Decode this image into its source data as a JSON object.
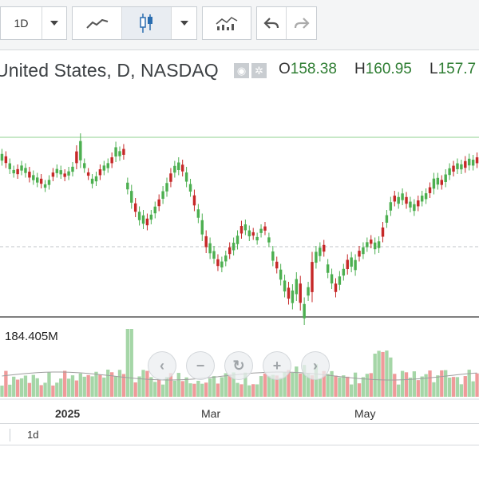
{
  "toolbar": {
    "interval": "1D",
    "chart_types": [
      "line-chart-icon",
      "candlestick-icon"
    ],
    "active_chart_type": "candlestick-icon",
    "indicators": "indicators-icon",
    "undo": "undo-icon",
    "redo": "redo-icon"
  },
  "header": {
    "title": "United States, D, NASDAQ",
    "open_label": "O",
    "open_value": "158.38",
    "high_label": "H",
    "high_value": "160.95",
    "low_label": "L",
    "low_value": "157.7"
  },
  "volume": {
    "label": "184.405M"
  },
  "xaxis": {
    "labels": [
      "2025",
      "Mar",
      "May"
    ]
  },
  "footer": {
    "interval": "1d"
  },
  "colors": {
    "up": "#4caf50",
    "down": "#c62828",
    "volume_up": "#a5d6a7",
    "volume_down": "#ef9a9a"
  },
  "chart_data": {
    "type": "candlestick",
    "grid": false,
    "candles": [
      [
        1,
        6.6,
        5.8
      ],
      [
        2,
        6.4,
        5.6
      ],
      [
        3,
        5.8,
        5.1
      ],
      [
        4,
        5.2,
        4.8
      ],
      [
        5,
        5.3,
        4.7
      ],
      [
        6,
        5.6,
        5.0
      ],
      [
        7,
        5.4,
        4.8
      ],
      [
        8,
        5.1,
        4.4
      ],
      [
        9,
        4.8,
        4.2
      ],
      [
        10,
        4.6,
        4.0
      ],
      [
        11,
        4.5,
        3.9
      ],
      [
        12,
        4.0,
        3.6
      ],
      [
        13,
        4.4,
        3.8
      ],
      [
        14,
        5.0,
        4.5
      ],
      [
        15,
        5.3,
        4.8
      ],
      [
        16,
        5.2,
        4.7
      ],
      [
        17,
        4.9,
        4.5
      ],
      [
        18,
        5.1,
        4.6
      ],
      [
        19,
        5.5,
        4.9
      ],
      [
        20,
        6.9,
        5.5
      ],
      [
        21,
        7.9,
        5.6
      ],
      [
        22,
        5.8,
        5.2
      ],
      [
        23,
        5.0,
        4.6
      ],
      [
        24,
        4.5,
        3.9
      ],
      [
        25,
        4.7,
        4.1
      ],
      [
        26,
        5.3,
        4.6
      ],
      [
        27,
        5.6,
        5.0
      ],
      [
        28,
        5.8,
        5.2
      ],
      [
        29,
        6.3,
        5.6
      ],
      [
        30,
        7.2,
        6.1
      ],
      [
        31,
        6.8,
        6.2
      ],
      [
        32,
        7.0,
        6.3
      ],
      [
        33,
        4.2,
        3.4
      ],
      [
        34,
        3.6,
        2.2
      ],
      [
        35,
        2.5,
        1.5
      ],
      [
        36,
        1.8,
        0.8
      ],
      [
        37,
        1.5,
        0.5
      ],
      [
        38,
        1.2,
        0.4
      ],
      [
        39,
        1.5,
        0.9
      ],
      [
        40,
        2.2,
        1.4
      ],
      [
        41,
        2.8,
        2.0
      ],
      [
        42,
        3.5,
        2.6
      ],
      [
        43,
        4.2,
        3.2
      ],
      [
        44,
        5.0,
        4.0
      ],
      [
        45,
        5.6,
        4.8
      ],
      [
        46,
        5.9,
        5.0
      ],
      [
        47,
        5.7,
        4.9
      ],
      [
        48,
        5.1,
        4.0
      ],
      [
        49,
        4.1,
        3.2
      ],
      [
        50,
        3.2,
        2.0
      ],
      [
        51,
        2.0,
        1.0
      ],
      [
        52,
        1.2,
        -0.5
      ],
      [
        53,
        -0.2,
        -1.5
      ],
      [
        54,
        -0.8,
        -2.0
      ],
      [
        55,
        -1.5,
        -2.4
      ],
      [
        56,
        -2.2,
        -3.0
      ],
      [
        57,
        -2.4,
        -3.1
      ],
      [
        58,
        -1.9,
        -2.6
      ],
      [
        59,
        -1.2,
        -2.0
      ],
      [
        60,
        -0.8,
        -1.7
      ],
      [
        61,
        -0.2,
        -1.2
      ],
      [
        62,
        0.6,
        -0.3
      ],
      [
        63,
        0.7,
        0.0
      ],
      [
        64,
        0.2,
        -0.5
      ],
      [
        65,
        0.0,
        -0.4
      ],
      [
        66,
        -0.4,
        -0.8
      ],
      [
        67,
        0.3,
        -0.2
      ],
      [
        68,
        0.5,
        0.0
      ],
      [
        69,
        -0.4,
        -1.0
      ],
      [
        70,
        -1.5,
        -2.6
      ],
      [
        71,
        -2.4,
        -3.2
      ],
      [
        72,
        -3.0,
        -4.2
      ],
      [
        73,
        -3.9,
        -5.2
      ],
      [
        74,
        -4.5,
        -5.8
      ],
      [
        75,
        -4.7,
        -6.2
      ],
      [
        76,
        -3.7,
        -5.5
      ],
      [
        77,
        -4.0,
        -6.3
      ],
      [
        78,
        -5.8,
        -7.5
      ],
      [
        79,
        -4.5,
        -5.5
      ],
      [
        80,
        -2.0,
        -5.6
      ],
      [
        81,
        -1.5,
        -2.8
      ],
      [
        82,
        -1.2,
        -2.2
      ],
      [
        83,
        -1.0,
        -1.8
      ],
      [
        84,
        -2.6,
        -3.6
      ],
      [
        85,
        -3.4,
        -4.5
      ],
      [
        86,
        -4.2,
        -5.2
      ],
      [
        87,
        -3.6,
        -4.6
      ],
      [
        88,
        -3.0,
        -3.8
      ],
      [
        89,
        -2.2,
        -3.3
      ],
      [
        90,
        -2.0,
        -3.1
      ],
      [
        91,
        -2.2,
        -3.4
      ],
      [
        92,
        -1.5,
        -2.2
      ],
      [
        93,
        -1.2,
        -2.0
      ],
      [
        94,
        -0.8,
        -1.4
      ],
      [
        95,
        -0.6,
        -1.1
      ],
      [
        96,
        -0.8,
        -1.6
      ],
      [
        97,
        -0.7,
        -1.5
      ],
      [
        98,
        0.5,
        -0.6
      ],
      [
        99,
        1.5,
        0.6
      ],
      [
        100,
        2.6,
        1.6
      ],
      [
        101,
        3.1,
        2.4
      ],
      [
        102,
        3.0,
        2.2
      ],
      [
        103,
        3.3,
        2.5
      ],
      [
        104,
        3.0,
        2.2
      ],
      [
        105,
        2.6,
        1.9
      ],
      [
        106,
        2.4,
        1.6
      ],
      [
        107,
        2.7,
        2.0
      ],
      [
        108,
        3.1,
        2.4
      ],
      [
        109,
        3.3,
        2.6
      ],
      [
        110,
        3.8,
        3.1
      ],
      [
        111,
        4.6,
        3.4
      ],
      [
        112,
        4.6,
        3.8
      ],
      [
        113,
        4.4,
        3.8
      ],
      [
        114,
        4.9,
        4.0
      ],
      [
        115,
        5.4,
        4.6
      ],
      [
        116,
        5.6,
        4.9
      ],
      [
        117,
        5.8,
        5.1
      ],
      [
        118,
        5.7,
        5.1
      ],
      [
        119,
        6.0,
        5.2
      ],
      [
        120,
        6.2,
        5.4
      ],
      [
        121,
        6.1,
        5.4
      ],
      [
        122,
        6.3,
        5.6
      ]
    ],
    "volume": {
      "max_label": "184.405M"
    },
    "xaxis_labels": [
      "2025",
      "Mar",
      "May"
    ]
  }
}
